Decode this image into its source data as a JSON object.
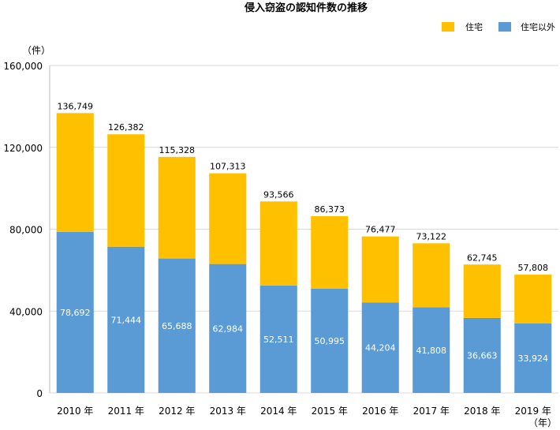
{
  "chart_data": {
    "type": "bar",
    "stacked": true,
    "title": "侵入窃盗の認知件数の推移",
    "y_unit": "（件）",
    "x_unit": "（年）",
    "categories": [
      "2010 年",
      "2011 年",
      "2012 年",
      "2013 年",
      "2014 年",
      "2015 年",
      "2016 年",
      "2017 年",
      "2018 年",
      "2019 年"
    ],
    "series": [
      {
        "name": "住宅以外",
        "color": "#5b9bd5",
        "values": [
          78692,
          71444,
          65688,
          62984,
          52511,
          50995,
          44204,
          41808,
          36663,
          33924
        ]
      },
      {
        "name": "住宅",
        "color": "#ffc000",
        "values": [
          58057,
          54938,
          49640,
          44329,
          41055,
          35378,
          32273,
          31314,
          26082,
          23884
        ]
      }
    ],
    "totals": [
      136749,
      126382,
      115328,
      107313,
      93566,
      86373,
      76477,
      73122,
      62745,
      57808
    ],
    "total_labels": [
      "136,749",
      "126,382",
      "115,328",
      "107,313",
      "93,566",
      "86,373",
      "76,477",
      "73,122",
      "62,745",
      "57,808"
    ],
    "bottom_labels": [
      "78,692",
      "71,444",
      "65,688",
      "62,984",
      "52,511",
      "50,995",
      "44,204",
      "41,808",
      "36,663",
      "33,924"
    ],
    "ylim": [
      0,
      160000
    ],
    "yticks": [
      0,
      40000,
      80000,
      120000,
      160000
    ],
    "ytick_labels": [
      "0",
      "40,000",
      "80,000",
      "120,000",
      "160,000"
    ],
    "legend": [
      {
        "label": "住宅",
        "color": "#ffc000"
      },
      {
        "label": "住宅以外",
        "color": "#5b9bd5"
      }
    ],
    "legend_position": "top-right",
    "grid": true
  }
}
